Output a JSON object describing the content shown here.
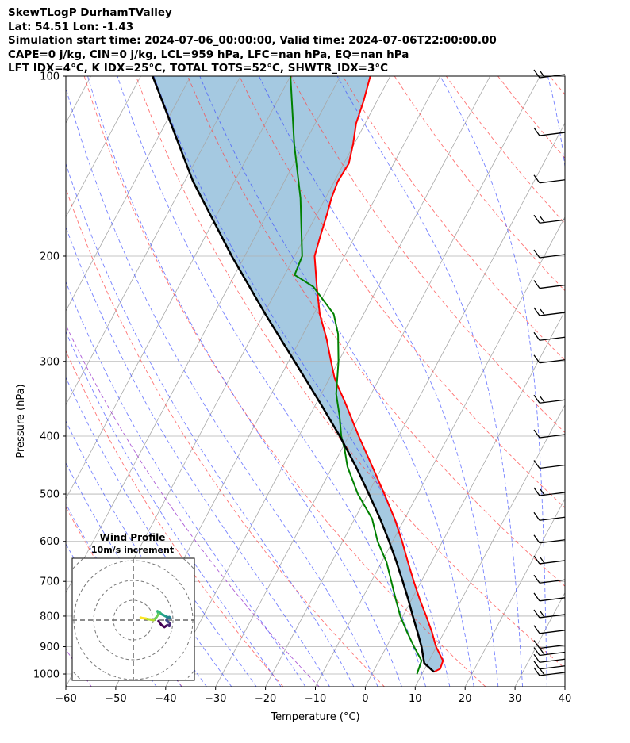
{
  "header": {
    "line1": "SkewTLogP DurhamTValley",
    "line2": "Lat: 54.51   Lon: -1.43",
    "line3": "Simulation start time: 2024-07-06_00:00:00, Valid time: 2024-07-06T22:00:00.00",
    "line4": "CAPE=0 j/kg, CIN=0 j/kg, LCL=959 hPa, LFC=nan hPa, EQ=nan hPa",
    "line5": "LFT IDX=4°C, K IDX=25°C, TOTAL TOTS=52°C, SHWTR_IDX=3°C"
  },
  "chart_data": {
    "type": "line",
    "xlabel": "Temperature (°C)",
    "ylabel": "Pressure (hPa)",
    "xlim": [
      -60,
      40
    ],
    "ylim": [
      1050,
      100
    ],
    "y_scale": "log",
    "x_ticks": [
      -60,
      -50,
      -40,
      -30,
      -20,
      -10,
      0,
      10,
      20,
      30,
      40
    ],
    "x_tick_labels": [
      "−60",
      "−50",
      "−40",
      "−30",
      "−20",
      "−10",
      "0",
      "10",
      "20",
      "30",
      "40"
    ],
    "y_ticks": [
      1000,
      900,
      800,
      700,
      600,
      500,
      400,
      300,
      200,
      100
    ],
    "y_tick_labels": [
      "1000",
      "900",
      "800",
      "700",
      "600",
      "500",
      "400",
      "300",
      "200",
      "100"
    ],
    "grid": true,
    "series": [
      {
        "color": "#ff0000",
        "pressure": [
          992,
          980,
          950,
          900,
          850,
          800,
          750,
          700,
          650,
          600,
          550,
          500,
          450,
          400,
          380,
          350,
          330,
          320,
          300,
          275,
          250,
          225,
          200,
          185,
          170,
          160,
          150,
          140,
          130,
          120,
          110,
          100
        ],
        "temperature": [
          12.2,
          13.1,
          12.8,
          9.9,
          7.5,
          4.7,
          1.6,
          -1.5,
          -4.7,
          -8.1,
          -12.0,
          -16.7,
          -22.0,
          -28.0,
          -30.5,
          -34.5,
          -37.5,
          -39.0,
          -41.5,
          -44.8,
          -48.8,
          -52.3,
          -56.0,
          -57.0,
          -58.0,
          -58.8,
          -59.3,
          -59.0,
          -60.2,
          -61.8,
          -62.7,
          -64.0
        ]
      },
      {
        "color": "#008000",
        "pressure": [
          1000,
          950,
          900,
          850,
          800,
          750,
          700,
          650,
          600,
          550,
          500,
          450,
          420,
          400,
          370,
          340,
          300,
          270,
          250,
          225,
          215,
          200,
          160,
          130,
          100
        ],
        "temperature": [
          9.0,
          8.5,
          5.5,
          2.5,
          -0.5,
          -3.2,
          -6.0,
          -9.0,
          -13.0,
          -16.5,
          -22.0,
          -27.0,
          -29.5,
          -31.5,
          -34.0,
          -37.0,
          -40.0,
          -43.0,
          -46.0,
          -53.0,
          -58.0,
          -58.5,
          -65.0,
          -72.0,
          -80.0
        ]
      },
      {
        "color": "#000000",
        "pressure": [
          992,
          959,
          900,
          850,
          800,
          750,
          700,
          650,
          600,
          550,
          500,
          450,
          400,
          350,
          300,
          250,
          200,
          150,
          100
        ],
        "temperature": [
          12.2,
          9.3,
          7.0,
          4.6,
          2.0,
          -0.7,
          -3.7,
          -7.0,
          -10.7,
          -14.9,
          -19.8,
          -25.3,
          -31.8,
          -39.6,
          -48.8,
          -59.7,
          -72.6,
          -88.3,
          -107.6
        ]
      }
    ],
    "wind_profile": {
      "title": "Wind Profile",
      "subtitle": "10m/s increment",
      "u": [
        1.5,
        3.0,
        4.5,
        6.0,
        7.0,
        7.3,
        6.5,
        5.5,
        6.0,
        7.0,
        7.5,
        7.0,
        6.0,
        5.0,
        4.0,
        3.0,
        2.5,
        2.0,
        1.0,
        1.5,
        0.5,
        -1.0,
        -2.5,
        -4.0,
        -5.0,
        -6.5,
        -7.5
      ],
      "v": [
        -0.5,
        -2.5,
        -3.5,
        -2.5,
        -3.0,
        -1.5,
        -1.0,
        0.0,
        1.0,
        1.5,
        1.0,
        1.5,
        1.5,
        2.0,
        2.5,
        3.0,
        3.5,
        4.0,
        4.5,
        3.0,
        1.5,
        0.0,
        0.3,
        0.5,
        0.8,
        1.0,
        1.3
      ],
      "colormap": "viridis",
      "rings": 3
    },
    "wind_barbs": {
      "pressure": [
        1000,
        975,
        950,
        925,
        900,
        850,
        800,
        750,
        700,
        650,
        600,
        550,
        500,
        450,
        400,
        350,
        300,
        275,
        250,
        225,
        200,
        175,
        150,
        125,
        100
      ]
    }
  }
}
